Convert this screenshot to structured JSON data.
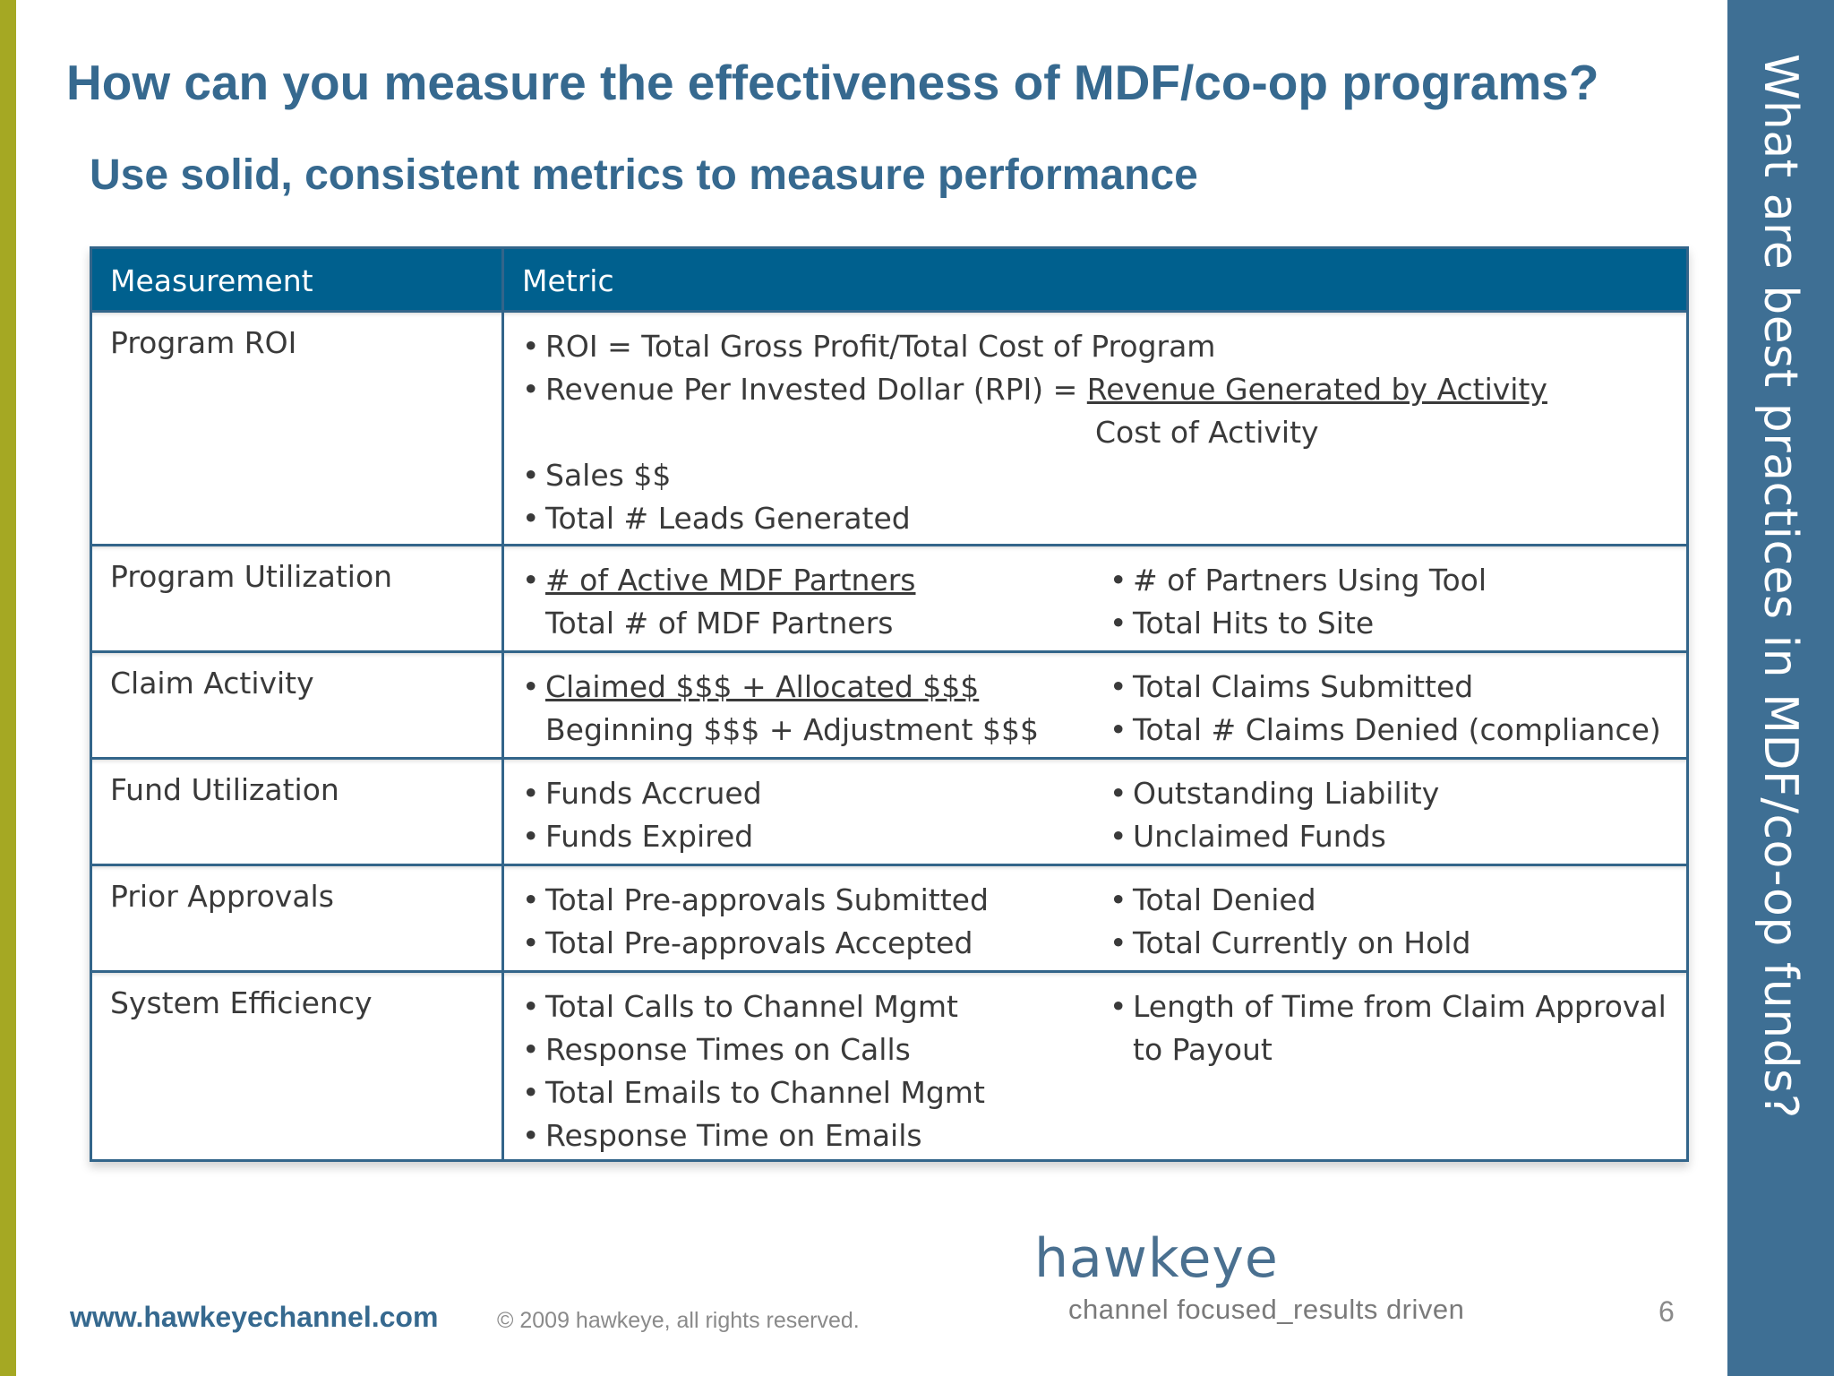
{
  "slide": {
    "title": "How can you measure the effectiveness of MDF/co-op programs?",
    "subtitle": "Use solid, consistent metrics to measure performance",
    "side_title": "What are best practices in MDF/co-op funds?",
    "page_number": "6"
  },
  "colors": {
    "accent": "#36698f",
    "header_bg": "#00608e",
    "left_bar": "#a5a823",
    "side_panel": "#3e6f94"
  },
  "table": {
    "headers": [
      "Measurement",
      "Metric"
    ],
    "rows": [
      {
        "measurement": "Program ROI",
        "roi": "ROI  =  Total Gross Profit/Total Cost of Program",
        "rpi_prefix": "Revenue Per Invested Dollar (RPI) = ",
        "rpi_numerator": "Revenue Generated by Activity",
        "rpi_denominator": "Cost of Activity",
        "items": [
          "Sales $$",
          "Total # Leads Generated"
        ]
      },
      {
        "measurement": "Program Utilization",
        "left_numerator": "# of Active MDF Partners",
        "left_denominator": "Total # of MDF Partners",
        "right": [
          "#  of Partners Using Tool",
          "Total Hits to Site"
        ]
      },
      {
        "measurement": "Claim Activity",
        "left_numerator": "Claimed $$$ + Allocated $$$",
        "left_denominator": "Beginning $$$ + Adjustment $$$",
        "right": [
          "Total Claims Submitted",
          "Total # Claims Denied (compliance)"
        ]
      },
      {
        "measurement": "Fund Utilization",
        "left": [
          "Funds Accrued",
          "Funds Expired"
        ],
        "right": [
          "Outstanding Liability",
          "Unclaimed Funds"
        ]
      },
      {
        "measurement": "Prior Approvals",
        "left": [
          "Total Pre-approvals Submitted",
          "Total Pre-approvals Accepted"
        ],
        "right": [
          "Total Denied",
          "Total Currently on Hold"
        ]
      },
      {
        "measurement": "System Efficiency",
        "left": [
          "Total Calls to Channel Mgmt",
          "Response Times on Calls",
          "Total Emails to Channel Mgmt",
          "Response Time on Emails"
        ],
        "right_line1": "Length of Time from Claim Approval",
        "right_line2": "to Payout"
      }
    ]
  },
  "footer": {
    "url": "www.hawkeyechannel.com",
    "copyright": "© 2009 hawkeye, all rights reserved.",
    "logo_word": "hawkeye",
    "logo_tagline": "channel focused_results driven"
  }
}
